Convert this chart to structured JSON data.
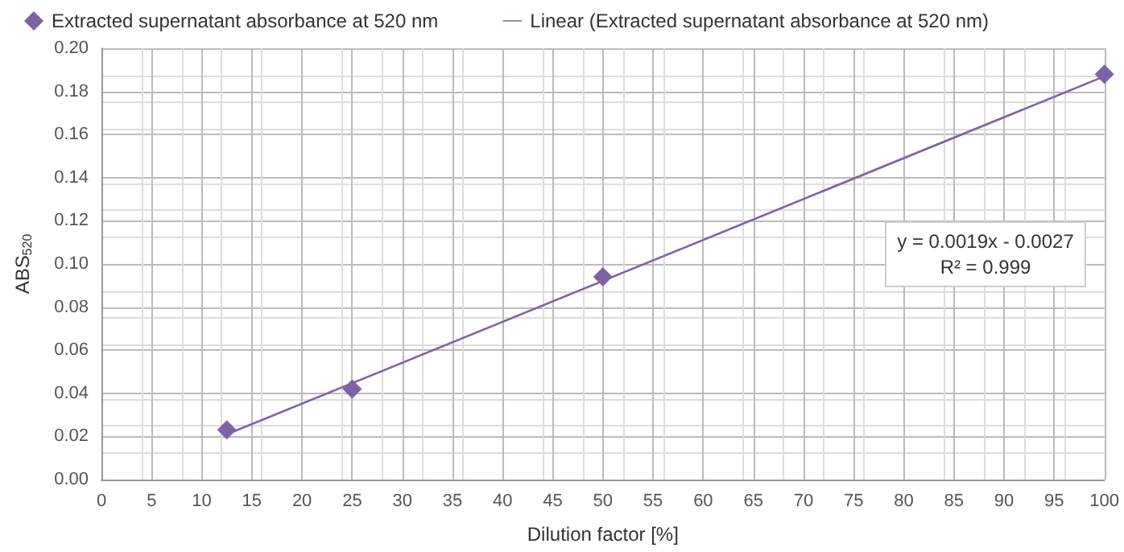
{
  "chart_data": {
    "type": "scatter",
    "xlabel": "Dilution factor [%]",
    "ylabel": "ABS$_{520}$",
    "xlim": [
      0,
      100
    ],
    "xticks": [
      0,
      5,
      10,
      15,
      20,
      25,
      30,
      35,
      40,
      45,
      50,
      55,
      60,
      65,
      70,
      75,
      80,
      85,
      90,
      95,
      100
    ],
    "ylim": [
      0,
      0.2
    ],
    "yticks": [
      {
        "value": 0,
        "label": "0.00"
      },
      {
        "value": 0.02,
        "label": "0.02"
      },
      {
        "value": 0.04,
        "label": "0.04"
      },
      {
        "value": 0.06,
        "label": "0.06"
      },
      {
        "value": 0.08,
        "label": "0.08"
      },
      {
        "value": 0.1,
        "label": "0.10"
      },
      {
        "value": 0.12,
        "label": "0.12"
      },
      {
        "value": 0.14,
        "label": "0.14"
      },
      {
        "value": 0.16,
        "label": "0.16"
      },
      {
        "value": 0.18,
        "label": "0.18"
      },
      {
        "value": 0.2,
        "label": "0.20"
      }
    ],
    "grid": true,
    "legend": "top left",
    "marker": "diamond",
    "series": [
      {
        "name": "Extracted supernatant absorbance at 520 nm",
        "color": "#7f62a3",
        "x": [
          12.5,
          25,
          50,
          100
        ],
        "values": [
          0.023,
          0.042,
          0.094,
          0.188
        ]
      },
      {
        "name": "Linear (Extracted supernatant absorbance at 520 nm)",
        "type": "line",
        "marker": "none",
        "color": "#7f62a3",
        "x": [
          12.5,
          100
        ],
        "values": [
          0.021,
          0.187
        ]
      }
    ],
    "annotations": [
      "y = 0.0019x - 0.0027",
      "R² = 0.999"
    ]
  }
}
